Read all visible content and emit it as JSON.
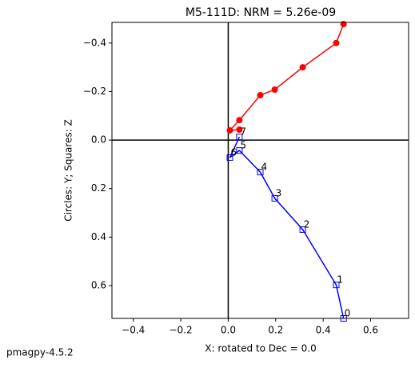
{
  "chart_data": {
    "type": "line",
    "title": "M5-111D: NRM =  5.26e-09",
    "x_label": "X: rotated to Dec =     0.0",
    "y_label": "Circles: Y; Squares: Z",
    "footer": "pmagpy-4.5.2",
    "x": [
      0.486,
      0.455,
      0.314,
      0.196,
      0.135,
      0.047,
      0.007,
      0.047
    ],
    "series": [
      {
        "color": "#ff0000",
        "marker": "circle",
        "values": [
          -0.478,
          -0.4,
          -0.3,
          -0.208,
          -0.185,
          -0.082,
          -0.04,
          -0.043
        ]
      },
      {
        "color": "#0000ff",
        "marker": "square",
        "values": [
          0.735,
          0.597,
          0.369,
          0.24,
          0.132,
          0.043,
          0.072,
          -0.013
        ],
        "point_labels": [
          "0",
          "1",
          "2",
          "3",
          "4",
          "5",
          "6",
          "7"
        ]
      }
    ],
    "xlim": [
      -0.49,
      0.76
    ],
    "ylim": [
      -0.485,
      0.735
    ],
    "y_inverted": true,
    "zero_lines": true,
    "xticks": [
      {
        "value": -0.4,
        "label": "−0.4"
      },
      {
        "value": -0.2,
        "label": "−0.2"
      },
      {
        "value": 0.0,
        "label": "0.0"
      },
      0.2,
      0.4,
      0.6
    ],
    "yticks": [
      {
        "value": -0.4,
        "label": "−0.4"
      },
      {
        "value": -0.2,
        "label": "−0.2"
      },
      {
        "value": 0.0,
        "label": "0.0"
      },
      0.2,
      0.4,
      0.6
    ]
  }
}
